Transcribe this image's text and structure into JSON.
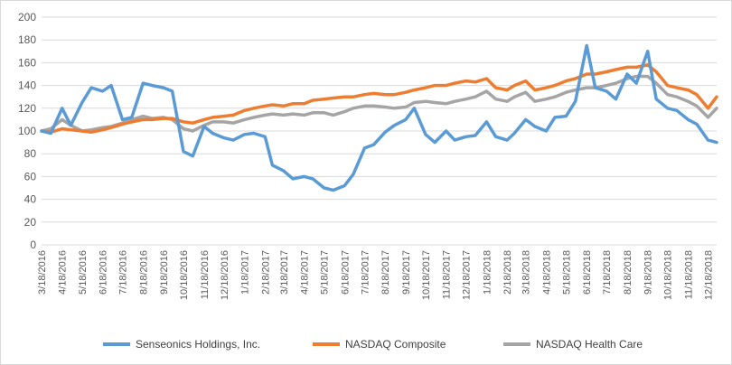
{
  "chart_data": {
    "type": "line",
    "title": "",
    "xlabel": "",
    "ylabel": "",
    "ylim": [
      0,
      200
    ],
    "y_ticks": [
      0,
      20,
      40,
      60,
      80,
      100,
      120,
      140,
      160,
      180,
      200
    ],
    "x_tick_labels": [
      "3/18/2016",
      "4/18/2016",
      "5/18/2016",
      "6/18/2016",
      "7/18/2016",
      "8/18/2016",
      "9/18/2016",
      "10/18/2016",
      "11/18/2016",
      "12/18/2016",
      "1/18/2017",
      "2/18/2017",
      "3/18/2017",
      "4/18/2017",
      "5/18/2017",
      "6/18/2017",
      "7/18/2017",
      "8/18/2017",
      "9/18/2017",
      "10/18/2017",
      "11/18/2017",
      "12/18/2017",
      "1/18/2018",
      "2/18/2018",
      "3/18/2018",
      "4/18/2018",
      "5/18/2018",
      "6/18/2018",
      "7/18/2018",
      "8/18/2018",
      "9/18/2018",
      "10/18/2018",
      "11/18/2018",
      "12/18/2018"
    ],
    "grid": "horizontal",
    "legend_position": "bottom",
    "x": [
      "3/18/2016",
      "4/1/2016",
      "4/18/2016",
      "5/1/2016",
      "5/18/2016",
      "6/1/2016",
      "6/18/2016",
      "7/1/2016",
      "7/18/2016",
      "8/1/2016",
      "8/18/2016",
      "9/1/2016",
      "9/18/2016",
      "10/1/2016",
      "10/18/2016",
      "11/1/2016",
      "11/18/2016",
      "12/1/2016",
      "12/18/2016",
      "1/1/2017",
      "1/18/2017",
      "2/1/2017",
      "2/18/2017",
      "3/1/2017",
      "3/18/2017",
      "4/1/2017",
      "4/18/2017",
      "5/1/2017",
      "5/18/2017",
      "6/1/2017",
      "6/18/2017",
      "7/1/2017",
      "7/18/2017",
      "8/1/2017",
      "8/18/2017",
      "9/1/2017",
      "9/18/2017",
      "10/1/2017",
      "10/18/2017",
      "11/1/2017",
      "11/18/2017",
      "12/1/2017",
      "12/18/2017",
      "1/1/2018",
      "1/18/2018",
      "2/1/2018",
      "2/18/2018",
      "3/1/2018",
      "3/18/2018",
      "4/1/2018",
      "4/18/2018",
      "5/1/2018",
      "5/18/2018",
      "6/1/2018",
      "6/18/2018",
      "7/1/2018",
      "7/18/2018",
      "8/1/2018",
      "8/18/2018",
      "9/1/2018",
      "9/18/2018",
      "10/1/2018",
      "10/18/2018",
      "11/1/2018",
      "11/18/2018",
      "12/1/2018",
      "12/18/2018",
      "12/31/2018"
    ],
    "series": [
      {
        "name": "Senseonics Holdings, Inc.",
        "color": "#5b9bd5",
        "values": [
          100,
          98,
          120,
          105,
          125,
          138,
          135,
          140,
          110,
          112,
          142,
          140,
          138,
          135,
          82,
          78,
          104,
          98,
          94,
          92,
          97,
          98,
          95,
          70,
          65,
          58,
          60,
          58,
          50,
          48,
          52,
          62,
          85,
          88,
          99,
          105,
          110,
          120,
          97,
          90,
          100,
          92,
          95,
          96,
          108,
          95,
          92,
          98,
          110,
          104,
          100,
          112,
          113,
          126,
          175,
          138,
          135,
          128,
          150,
          142,
          170,
          128,
          120,
          118,
          110,
          106,
          92,
          90
        ]
      },
      {
        "name": "NASDAQ Composite",
        "color": "#ed7d31",
        "values": [
          100,
          99,
          102,
          101,
          100,
          99,
          101,
          103,
          106,
          108,
          110,
          110,
          111,
          111,
          108,
          107,
          110,
          112,
          113,
          114,
          118,
          120,
          122,
          123,
          122,
          124,
          124,
          127,
          128,
          129,
          130,
          130,
          132,
          133,
          132,
          132,
          134,
          136,
          138,
          140,
          140,
          142,
          144,
          143,
          146,
          138,
          136,
          140,
          144,
          136,
          138,
          140,
          144,
          146,
          150,
          150,
          152,
          154,
          156,
          156,
          158,
          152,
          140,
          138,
          136,
          132,
          120,
          130
        ]
      },
      {
        "name": "NASDAQ Health Care",
        "color": "#a5a5a5",
        "values": [
          100,
          102,
          110,
          105,
          100,
          101,
          103,
          104,
          107,
          110,
          113,
          111,
          112,
          110,
          102,
          100,
          105,
          108,
          108,
          107,
          110,
          112,
          114,
          115,
          114,
          115,
          114,
          116,
          116,
          114,
          117,
          120,
          122,
          122,
          121,
          120,
          121,
          125,
          126,
          125,
          124,
          126,
          128,
          130,
          135,
          128,
          126,
          130,
          134,
          126,
          128,
          130,
          134,
          136,
          138,
          138,
          140,
          142,
          146,
          148,
          148,
          142,
          132,
          130,
          126,
          122,
          112,
          120
        ]
      }
    ]
  }
}
